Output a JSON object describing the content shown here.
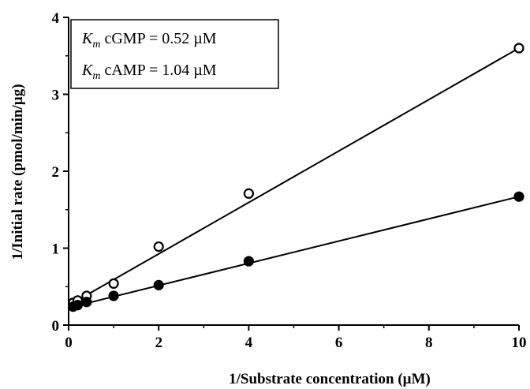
{
  "chart_data": {
    "type": "scatter",
    "title": "",
    "xlabel": "1/Substrate concentration (µM)",
    "ylabel": "1/Initial rate (pmol/min/µg)",
    "xlim": [
      0,
      10
    ],
    "ylim": [
      0,
      4
    ],
    "xticks": [
      "0",
      "2",
      "4",
      "6",
      "8",
      "10"
    ],
    "yticks": [
      "0",
      "1",
      "2",
      "3",
      "4"
    ],
    "grid": false,
    "series": [
      {
        "marker": "open-circle",
        "x": [
          0.1,
          0.2,
          0.4,
          1,
          2,
          4,
          10
        ],
        "y": [
          0.29,
          0.32,
          0.38,
          0.54,
          1.02,
          1.71,
          3.6
        ],
        "fit_line": {
          "x": [
            0.1,
            10
          ],
          "y": [
            0.29,
            3.6
          ]
        }
      },
      {
        "marker": "filled-circle",
        "x": [
          0.1,
          0.2,
          0.4,
          1,
          2,
          4,
          10
        ],
        "y": [
          0.24,
          0.26,
          0.3,
          0.38,
          0.52,
          0.83,
          1.67
        ],
        "fit_line": {
          "x": [
            0.1,
            10
          ],
          "y": [
            0.24,
            1.67
          ]
        }
      }
    ],
    "annotations": [
      {
        "km": "K",
        "sub": "m",
        "text": " cGMP = 0.52 µM"
      },
      {
        "km": "K",
        "sub": "m",
        "text": " cAMP = 1.04 µM"
      }
    ]
  }
}
